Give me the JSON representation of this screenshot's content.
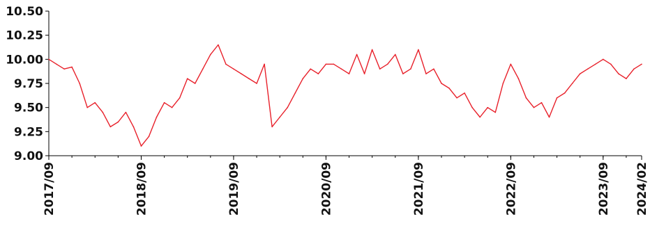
{
  "chart_data": {
    "type": "line",
    "title": "",
    "xlabel": "",
    "ylabel": "",
    "ylim": [
      9.0,
      10.5
    ],
    "xlim": [
      "2017-09",
      "2024-02"
    ],
    "grid": false,
    "legend": "none",
    "line_color": "#e8202a",
    "y_ticks": [
      {
        "value": 9.0,
        "label": "9.00"
      },
      {
        "value": 9.25,
        "label": "9.25"
      },
      {
        "value": 9.5,
        "label": "9.50"
      },
      {
        "value": 9.75,
        "label": "9.75"
      },
      {
        "value": 10.0,
        "label": "10.00"
      },
      {
        "value": 10.25,
        "label": "10.25"
      },
      {
        "value": 10.5,
        "label": "10.50"
      }
    ],
    "x_ticks": [
      {
        "value": "2017-09",
        "label": "2017/09"
      },
      {
        "value": "2018-09",
        "label": "2018/09"
      },
      {
        "value": "2019-09",
        "label": "2019/09"
      },
      {
        "value": "2020-09",
        "label": "2020/09"
      },
      {
        "value": "2021-09",
        "label": "2021/09"
      },
      {
        "value": "2022-09",
        "label": "2022/09"
      },
      {
        "value": "2023-09",
        "label": "2023/09"
      },
      {
        "value": "2024-02",
        "label": "2024/02"
      }
    ],
    "series": [
      {
        "x": [
          "2017-09",
          "2017-10",
          "2017-11",
          "2017-12",
          "2018-01",
          "2018-02",
          "2018-03",
          "2018-04",
          "2018-05",
          "2018-06",
          "2018-07",
          "2018-08",
          "2018-09",
          "2018-10",
          "2018-11",
          "2018-12",
          "2019-01",
          "2019-02",
          "2019-03",
          "2019-04",
          "2019-05",
          "2019-06",
          "2019-07",
          "2019-08",
          "2019-09",
          "2019-10",
          "2019-11",
          "2019-12",
          "2020-01",
          "2020-02",
          "2020-03",
          "2020-04",
          "2020-05",
          "2020-06",
          "2020-07",
          "2020-08",
          "2020-09",
          "2020-10",
          "2020-11",
          "2020-12",
          "2021-01",
          "2021-02",
          "2021-03",
          "2021-04",
          "2021-05",
          "2021-06",
          "2021-07",
          "2021-08",
          "2021-09",
          "2021-10",
          "2021-11",
          "2021-12",
          "2022-01",
          "2022-02",
          "2022-03",
          "2022-04",
          "2022-05",
          "2022-06",
          "2022-07",
          "2022-08",
          "2022-09",
          "2022-10",
          "2022-11",
          "2022-12",
          "2023-01",
          "2023-02",
          "2023-03",
          "2023-04",
          "2023-05",
          "2023-06",
          "2023-07",
          "2023-08",
          "2023-09",
          "2023-10",
          "2023-11",
          "2023-12",
          "2024-01",
          "2024-02"
        ],
        "values": [
          10.0,
          9.95,
          9.9,
          9.92,
          9.75,
          9.5,
          9.55,
          9.45,
          9.3,
          9.35,
          9.45,
          9.3,
          9.1,
          9.2,
          9.4,
          9.55,
          9.5,
          9.6,
          9.8,
          9.75,
          9.9,
          10.05,
          10.15,
          9.95,
          9.9,
          9.85,
          9.8,
          9.75,
          9.95,
          9.3,
          9.4,
          9.5,
          9.65,
          9.8,
          9.9,
          9.85,
          9.95,
          9.95,
          9.9,
          9.85,
          10.05,
          9.85,
          10.1,
          9.9,
          9.95,
          10.05,
          9.85,
          9.9,
          10.1,
          9.85,
          9.9,
          9.75,
          9.7,
          9.6,
          9.65,
          9.5,
          9.4,
          9.5,
          9.45,
          9.75,
          9.95,
          9.8,
          9.6,
          9.5,
          9.55,
          9.4,
          9.6,
          9.65,
          9.75,
          9.85,
          9.9,
          9.95,
          10.0,
          9.95,
          9.85,
          9.8,
          9.9,
          9.95
        ]
      }
    ]
  }
}
